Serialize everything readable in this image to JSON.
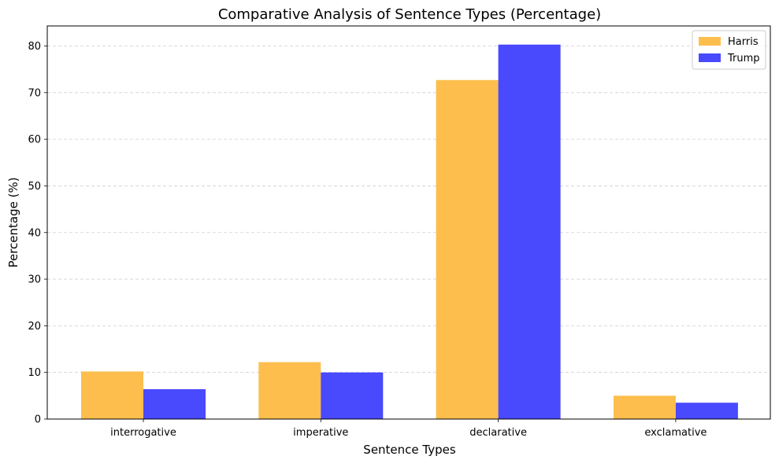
{
  "chart_data": {
    "type": "bar",
    "title": "Comparative Analysis of Sentence Types (Percentage)",
    "xlabel": "Sentence Types",
    "ylabel": "Percentage (%)",
    "categories": [
      "interrogative",
      "imperative",
      "declarative",
      "exclamative"
    ],
    "series": [
      {
        "name": "Harris",
        "values": [
          10.2,
          12.2,
          72.7,
          5.0
        ],
        "color": "#fdbe4d"
      },
      {
        "name": "Trump",
        "values": [
          6.4,
          10.0,
          80.3,
          3.5
        ],
        "color": "#4949fe"
      }
    ],
    "ylim": [
      0,
      84.3
    ],
    "yticks": [
      0,
      10,
      20,
      30,
      40,
      50,
      60,
      70,
      80
    ],
    "grid": "y-dashed",
    "legend": "top-right"
  }
}
